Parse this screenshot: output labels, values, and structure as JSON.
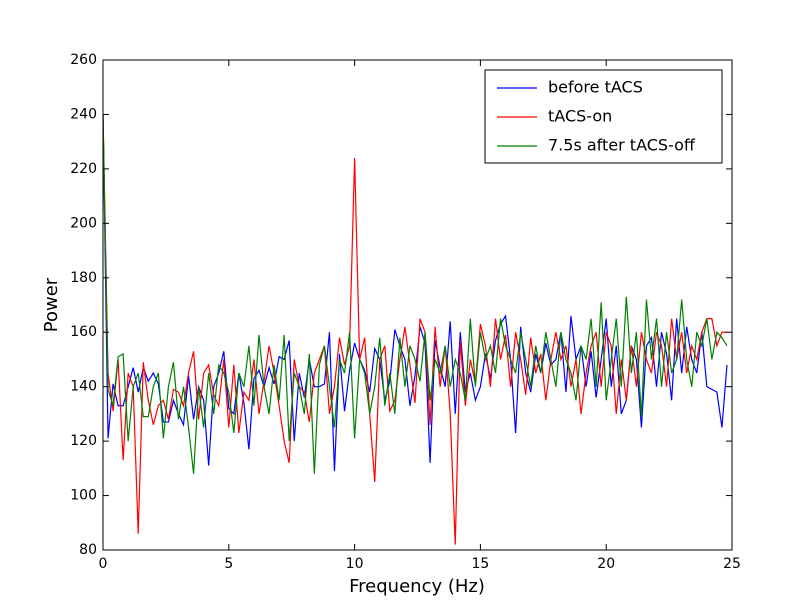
{
  "chart_data": {
    "type": "line",
    "xlabel": "Frequency (Hz)",
    "ylabel": "Power",
    "x": [
      0,
      0.2,
      0.4,
      0.6,
      0.8,
      1,
      1.2,
      1.4,
      1.6,
      1.8,
      2,
      2.2,
      2.4,
      2.6,
      2.8,
      3,
      3.2,
      3.4,
      3.6,
      3.8,
      4,
      4.2,
      4.4,
      4.6,
      4.8,
      5,
      5.2,
      5.4,
      5.6,
      5.8,
      6,
      6.2,
      6.4,
      6.6,
      6.8,
      7,
      7.2,
      7.4,
      7.6,
      7.8,
      8,
      8.2,
      8.4,
      8.6,
      8.8,
      9,
      9.2,
      9.4,
      9.6,
      9.8,
      10,
      10.2,
      10.4,
      10.6,
      10.8,
      11,
      11.2,
      11.4,
      11.6,
      11.8,
      12,
      12.2,
      12.4,
      12.6,
      12.8,
      13,
      13.2,
      13.4,
      13.6,
      13.8,
      14,
      14.2,
      14.4,
      14.6,
      14.8,
      15,
      15.2,
      15.4,
      15.6,
      15.8,
      16,
      16.2,
      16.4,
      16.6,
      16.8,
      17,
      17.2,
      17.4,
      17.6,
      17.8,
      18,
      18.2,
      18.4,
      18.6,
      18.8,
      19,
      19.2,
      19.4,
      19.6,
      19.8,
      20,
      20.2,
      20.4,
      20.6,
      20.8,
      21,
      21.2,
      21.4,
      21.6,
      21.8,
      22,
      22.2,
      22.4,
      22.6,
      22.8,
      23,
      23.2,
      23.4,
      23.6,
      23.8,
      24,
      24.2,
      24.4,
      24.6,
      24.8
    ],
    "series": [
      {
        "name": "before tACS",
        "color": "#0000ff",
        "values": [
          240,
          121,
          141,
          133,
          133,
          140,
          147,
          138,
          147,
          142,
          145,
          141,
          127,
          127,
          135,
          130,
          126,
          144,
          128,
          140,
          135,
          111,
          140,
          145,
          153,
          132,
          130,
          145,
          134,
          117,
          143,
          146,
          140,
          147,
          141,
          151,
          150,
          157,
          120,
          145,
          136,
          150,
          140,
          140,
          141,
          160,
          109,
          152,
          131,
          146,
          156,
          150,
          146,
          138,
          154,
          150,
          135,
          142,
          161,
          155,
          150,
          133,
          144,
          162,
          156,
          112,
          157,
          147,
          140,
          164,
          130,
          160,
          138,
          145,
          135,
          140,
          152,
          143,
          157,
          163,
          166,
          150,
          123,
          162,
          145,
          138,
          152,
          145,
          156,
          148,
          150,
          160,
          138,
          166,
          150,
          155,
          140,
          153,
          136,
          150,
          165,
          140,
          155,
          130,
          135,
          155,
          150,
          125,
          155,
          158,
          140,
          160,
          152,
          135,
          165,
          145,
          162,
          150,
          145,
          160,
          140,
          139,
          138,
          125,
          148
        ]
      },
      {
        "name": "tACS-on",
        "color": "#ff0000",
        "values": [
          240,
          145,
          131,
          150,
          113,
          145,
          140,
          86,
          149,
          135,
          126,
          133,
          135,
          128,
          139,
          138,
          133,
          145,
          153,
          128,
          145,
          148,
          137,
          133,
          150,
          125,
          148,
          123,
          138,
          135,
          150,
          130,
          142,
          155,
          145,
          133,
          120,
          112,
          150,
          140,
          138,
          127,
          145,
          150,
          155,
          130,
          140,
          158,
          148,
          155,
          224,
          150,
          158,
          130,
          105,
          150,
          155,
          131,
          135,
          150,
          162,
          148,
          134,
          165,
          160,
          126,
          162,
          140,
          155,
          130,
          82,
          157,
          133,
          150,
          141,
          163,
          155,
          140,
          165,
          150,
          159,
          140,
          160,
          150,
          137,
          158,
          145,
          152,
          135,
          150,
          160,
          150,
          155,
          140,
          150,
          130,
          145,
          155,
          160,
          140,
          160,
          155,
          130,
          150,
          135,
          155,
          140,
          160,
          150,
          145,
          160,
          155,
          140,
          165,
          150,
          160,
          145,
          155,
          150,
          160,
          165,
          165,
          155,
          160,
          160
        ]
      },
      {
        "name": "7.5s after tACS-off",
        "color": "#008000",
        "values": [
          240,
          139,
          133,
          151,
          152,
          120,
          140,
          145,
          129,
          129,
          140,
          145,
          121,
          140,
          149,
          128,
          140,
          125,
          108,
          140,
          125,
          145,
          130,
          148,
          145,
          138,
          123,
          145,
          140,
          155,
          133,
          159,
          140,
          130,
          148,
          135,
          159,
          120,
          145,
          140,
          130,
          152,
          108,
          148,
          155,
          140,
          125,
          150,
          145,
          160,
          121,
          150,
          145,
          130,
          140,
          158,
          133,
          145,
          130,
          158,
          140,
          155,
          150,
          142,
          160,
          135,
          150,
          145,
          155,
          140,
          150,
          145,
          135,
          165,
          140,
          160,
          150,
          155,
          145,
          165,
          155,
          150,
          145,
          160,
          150,
          140,
          155,
          145,
          160,
          150,
          140,
          160,
          150,
          145,
          135,
          155,
          150,
          165,
          140,
          171,
          135,
          150,
          165,
          140,
          173,
          145,
          160,
          129,
          172,
          150,
          165,
          140,
          160,
          145,
          150,
          172,
          150,
          140,
          160,
          155,
          165,
          150,
          160,
          158,
          155
        ]
      }
    ],
    "xlim": [
      0,
      25
    ],
    "xticks": [
      0,
      5,
      10,
      15,
      20,
      25
    ],
    "ylim": [
      80,
      260
    ],
    "yticks": [
      80,
      100,
      120,
      140,
      160,
      180,
      200,
      220,
      240,
      260
    ],
    "legend": "upper right"
  }
}
